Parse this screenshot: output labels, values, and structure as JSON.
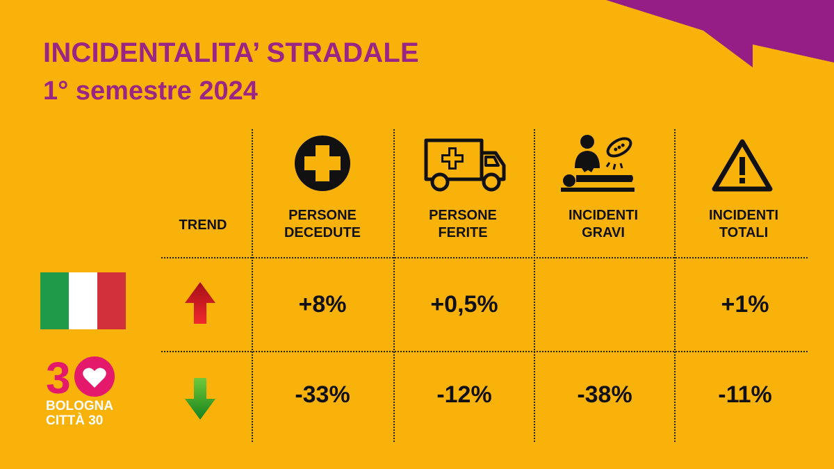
{
  "title": "INCIDENTALITA’ STRADALE",
  "subtitle": "1° semestre 2024",
  "trend_label": "TREND",
  "columns": [
    {
      "label": "PERSONE DECEDUTE",
      "icon": "medical-cross-icon"
    },
    {
      "label": "PERSONE FERITE",
      "icon": "ambulance-icon"
    },
    {
      "label": "INCIDENTI GRAVI",
      "icon": "surgeon-patient-icon"
    },
    {
      "label": "INCIDENTI TOTALI",
      "icon": "warning-triangle-icon"
    }
  ],
  "rows": [
    {
      "name": "Italia",
      "icon": "italy-flag-icon",
      "trend": "up",
      "values": [
        "+8%",
        "+0,5%",
        "",
        "+1%"
      ]
    },
    {
      "name": "Bologna Città 30",
      "icon": "bologna-citta-30-logo",
      "trend": "down",
      "values": [
        "-33%",
        "-12%",
        "-38%",
        "-11%"
      ]
    }
  ],
  "logo": {
    "number": "30",
    "line1": "BOLOGNA",
    "line2": "CITTÀ 30"
  },
  "colors": {
    "background": "#F9B20A",
    "accent_purple": "#9A2585",
    "flag_green": "#1F9A48",
    "flag_white": "#FFFFFF",
    "flag_red": "#D3313A",
    "logo_magenta": "#E4196C",
    "trend_up": "#D6141E",
    "trend_down": "#3CA632"
  }
}
